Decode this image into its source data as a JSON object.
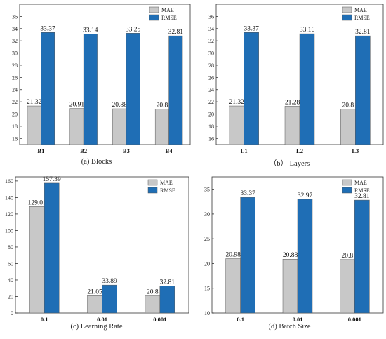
{
  "colors": {
    "mae": "#c8c8c8",
    "rmse": "#1f6eb5",
    "axis": "#333333"
  },
  "chart_data": [
    {
      "type": "bar",
      "caption": "(a) Blocks",
      "categories": [
        "B1",
        "B2",
        "B3",
        "B4"
      ],
      "series": [
        {
          "name": "MAE",
          "values": [
            21.32,
            20.91,
            20.86,
            20.8
          ]
        },
        {
          "name": "RMSE",
          "values": [
            33.37,
            33.14,
            33.25,
            32.81
          ]
        }
      ],
      "value_labels": [
        [
          "21.32",
          "20.91",
          "20.86",
          "20.8"
        ],
        [
          "33.37",
          "33.14",
          "33.25",
          "32.81"
        ]
      ],
      "ylim": [
        15,
        38
      ],
      "yticks": [
        16,
        18,
        20,
        22,
        24,
        26,
        28,
        30,
        32,
        34,
        36
      ],
      "legend_placement": "top-right",
      "grid": false
    },
    {
      "type": "bar",
      "caption": "（b） Layers",
      "categories": [
        "L1",
        "L2",
        "L3"
      ],
      "series": [
        {
          "name": "MAE",
          "values": [
            21.32,
            21.28,
            20.8
          ]
        },
        {
          "name": "RMSE",
          "values": [
            33.37,
            33.16,
            32.81
          ]
        }
      ],
      "value_labels": [
        [
          "21.32",
          "21.28",
          "20.8"
        ],
        [
          "33.37",
          "33.16",
          "32.81"
        ]
      ],
      "ylim": [
        15,
        38
      ],
      "yticks": [
        16,
        18,
        20,
        22,
        24,
        26,
        28,
        30,
        32,
        34,
        36
      ],
      "legend_placement": "top-right",
      "grid": false
    },
    {
      "type": "bar",
      "caption": "(c) Learning Rate",
      "categories": [
        "0.1",
        "0.01",
        "0.001"
      ],
      "series": [
        {
          "name": "MAE",
          "values": [
            129.01,
            21.05,
            20.8
          ]
        },
        {
          "name": "RMSE",
          "values": [
            157.39,
            33.89,
            32.81
          ]
        }
      ],
      "value_labels": [
        [
          "129.01",
          "21.05",
          "20.8"
        ],
        [
          "157.39",
          "33.89",
          "32.81"
        ]
      ],
      "ylim": [
        0,
        165
      ],
      "yticks": [
        0,
        20,
        40,
        60,
        80,
        100,
        120,
        140,
        160
      ],
      "legend_placement": "top-right",
      "grid": false
    },
    {
      "type": "bar",
      "caption": "(d) Batch Size",
      "categories": [
        "0.1",
        "0.01",
        "0.001"
      ],
      "series": [
        {
          "name": "MAE",
          "values": [
            20.98,
            20.88,
            20.8
          ]
        },
        {
          "name": "RMSE",
          "values": [
            33.37,
            32.97,
            32.81
          ]
        }
      ],
      "value_labels": [
        [
          "20.98",
          "20.88",
          "20.8"
        ],
        [
          "33.37",
          "32.97",
          "32.81"
        ]
      ],
      "ylim": [
        10,
        37.5
      ],
      "yticks": [
        10,
        15,
        20,
        25,
        30,
        35
      ],
      "legend_placement": "top-right",
      "grid": false
    }
  ]
}
